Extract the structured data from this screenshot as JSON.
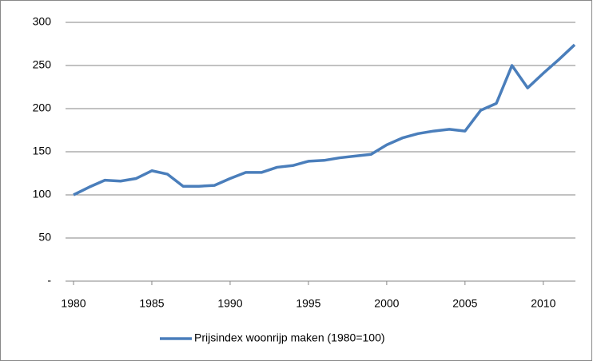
{
  "chart_data": {
    "type": "line",
    "x": [
      1980,
      1981,
      1982,
      1983,
      1984,
      1985,
      1986,
      1987,
      1988,
      1989,
      1990,
      1991,
      1992,
      1993,
      1994,
      1995,
      1996,
      1997,
      1998,
      1999,
      2000,
      2001,
      2002,
      2003,
      2004,
      2005,
      2006,
      2007,
      2008,
      2009,
      2010,
      2011,
      2012
    ],
    "series": [
      {
        "name": "Prijsindex woonrijp maken (1980=100)",
        "color": "#4a7ebb",
        "values": [
          100,
          109,
          117,
          116,
          119,
          128,
          124,
          110,
          110,
          111,
          119,
          126,
          126,
          132,
          134,
          139,
          140,
          143,
          145,
          147,
          158,
          166,
          171,
          174,
          176,
          174,
          198,
          206,
          250,
          224,
          241,
          257,
          274
        ]
      }
    ],
    "xlim": [
      1980,
      2012
    ],
    "xticks": [
      1980,
      1985,
      1990,
      1995,
      2000,
      2005,
      2010
    ],
    "ylim": [
      0,
      300
    ],
    "yticks": [
      {
        "value": 0,
        "label": "-"
      },
      50,
      100,
      150,
      200,
      250,
      300
    ],
    "grid": true,
    "legend": "bottom"
  }
}
